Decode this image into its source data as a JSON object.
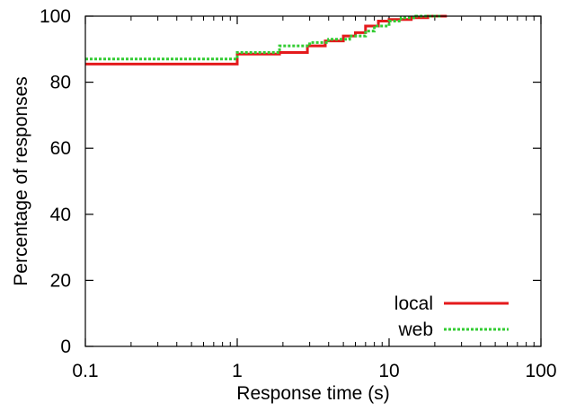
{
  "chart_data": {
    "type": "line",
    "xlabel": "Response time (s)",
    "ylabel": "Percentage of responses",
    "xscale": "log",
    "xlim": [
      0.1,
      100
    ],
    "ylim": [
      0,
      100
    ],
    "xticks": [
      "0.1",
      "1",
      "10",
      "100"
    ],
    "yticks": [
      "0",
      "20",
      "40",
      "60",
      "80",
      "100"
    ],
    "grid": false,
    "legend_position": "bottom-right",
    "series": [
      {
        "name": "local",
        "color": "#e41a1c",
        "style": "solid step",
        "points": [
          [
            0.1,
            85.5
          ],
          [
            1.0,
            85.5
          ],
          [
            1.0,
            88.5
          ],
          [
            1.9,
            88.5
          ],
          [
            1.9,
            89.0
          ],
          [
            2.9,
            89.0
          ],
          [
            2.9,
            91.0
          ],
          [
            3.8,
            91.0
          ],
          [
            3.8,
            92.5
          ],
          [
            5.0,
            92.5
          ],
          [
            5.0,
            94.0
          ],
          [
            6.0,
            94.0
          ],
          [
            6.0,
            95.0
          ],
          [
            7.0,
            95.0
          ],
          [
            7.0,
            97.0
          ],
          [
            8.5,
            97.0
          ],
          [
            8.5,
            98.5
          ],
          [
            10.0,
            98.5
          ],
          [
            10.0,
            99.0
          ],
          [
            14.0,
            99.0
          ],
          [
            14.0,
            99.5
          ],
          [
            18.0,
            99.5
          ],
          [
            18.0,
            100.0
          ],
          [
            24.0,
            100.0
          ]
        ]
      },
      {
        "name": "web",
        "color": "#33cc33",
        "style": "dotted step",
        "points": [
          [
            0.1,
            87.0
          ],
          [
            1.0,
            87.0
          ],
          [
            1.0,
            89.0
          ],
          [
            1.9,
            89.0
          ],
          [
            1.9,
            91.0
          ],
          [
            3.0,
            91.0
          ],
          [
            3.0,
            92.0
          ],
          [
            4.0,
            92.0
          ],
          [
            4.0,
            93.0
          ],
          [
            5.5,
            93.0
          ],
          [
            5.5,
            94.0
          ],
          [
            7.0,
            94.0
          ],
          [
            7.0,
            95.5
          ],
          [
            8.0,
            95.5
          ],
          [
            8.0,
            97.0
          ],
          [
            10.0,
            97.0
          ],
          [
            10.0,
            98.5
          ],
          [
            12.0,
            98.5
          ],
          [
            12.0,
            99.5
          ],
          [
            15.0,
            99.5
          ],
          [
            15.0,
            100.0
          ],
          [
            22.0,
            100.0
          ]
        ]
      }
    ]
  }
}
